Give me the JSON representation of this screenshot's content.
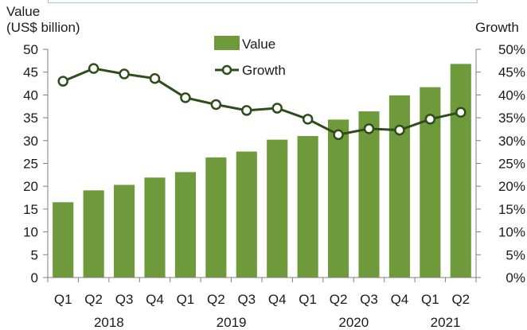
{
  "chart_data": {
    "type": "bar",
    "ylabel_left": [
      "Value",
      "(US$ billion)"
    ],
    "ylabel_right": "Growth",
    "quarters": [
      "Q1",
      "Q2",
      "Q3",
      "Q4",
      "Q1",
      "Q2",
      "Q3",
      "Q4",
      "Q1",
      "Q2",
      "Q3",
      "Q4",
      "Q1",
      "Q2"
    ],
    "years": [
      {
        "label": "2018",
        "first": 0,
        "last": 3
      },
      {
        "label": "2019",
        "first": 4,
        "last": 7
      },
      {
        "label": "2020",
        "first": 8,
        "last": 11
      },
      {
        "label": "2021",
        "first": 12,
        "last": 13
      }
    ],
    "left_axis": {
      "ylim": [
        0,
        50
      ],
      "ticks": [
        "0",
        "5",
        "10",
        "15",
        "20",
        "25",
        "30",
        "35",
        "40",
        "45",
        "50"
      ]
    },
    "right_axis": {
      "ylim": [
        0,
        50
      ],
      "ticks": [
        "0%",
        "5%",
        "10%",
        "15%",
        "20%",
        "25%",
        "30%",
        "35%",
        "40%",
        "45%",
        "50%"
      ]
    },
    "series": [
      {
        "name": "Value",
        "kind": "bar",
        "color": "#6f9a3c",
        "values": [
          16.5,
          19.1,
          20.3,
          21.9,
          23.1,
          26.3,
          27.6,
          30.2,
          31.0,
          34.6,
          36.4,
          39.9,
          41.7,
          46.8
        ]
      },
      {
        "name": "Growth",
        "kind": "line",
        "axis": "right",
        "color": "#2d4e1a",
        "values": [
          43.0,
          45.8,
          44.6,
          43.6,
          39.4,
          37.9,
          36.6,
          37.1,
          34.7,
          31.3,
          32.6,
          32.3,
          34.7,
          36.2
        ]
      }
    ],
    "legend_position": "top-center",
    "grid": false
  }
}
